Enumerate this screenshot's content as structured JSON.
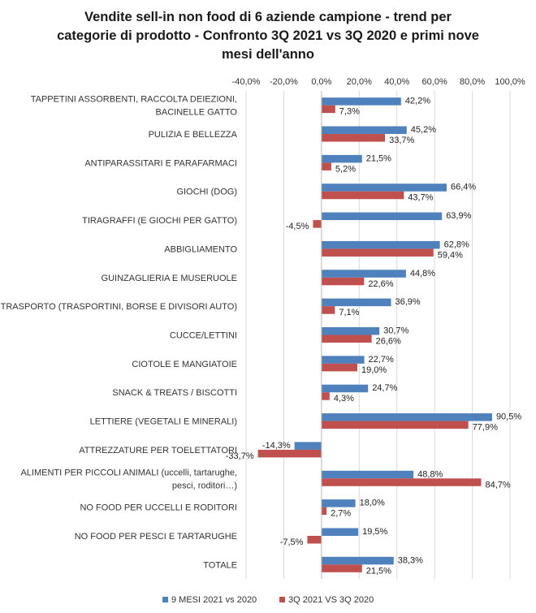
{
  "colors": {
    "series1": "#4f81bd",
    "series2": "#c0504d",
    "grid": "#d9d9d9",
    "text": "#333333"
  },
  "chart_data": {
    "type": "bar",
    "orientation": "horizontal",
    "title_lines": [
      "Vendite sell-in non food di 6 aziende campione - trend per",
      "categorie di prodotto - Confronto 3Q 2021 vs 3Q 2020 e primi nove",
      "mesi dell'anno"
    ],
    "categories": [
      [
        "TAPPETINI ASSORBENTI, RACCOLTA DEIEZIONI,",
        "BACINELLE GATTO"
      ],
      [
        "PULIZIA E BELLEZZA"
      ],
      [
        "ANTIPARASSITARI E PARAFARMACI"
      ],
      [
        "GIOCHI (DOG)"
      ],
      [
        "TIRAGRAFFI (E GIOCHI PER GATTO)"
      ],
      [
        "ABBIGLIAMENTO"
      ],
      [
        "GUINZAGLIERIA E MUSERUOLE"
      ],
      [
        "TRASPORTO (TRASPORTINI,  BORSE E DIVISORI AUTO)"
      ],
      [
        "CUCCE/LETTINI"
      ],
      [
        "CIOTOLE E MANGIATOIE"
      ],
      [
        "SNACK & TREATS / BISCOTTI"
      ],
      [
        "LETTIERE (VEGETALI E MINERALI)"
      ],
      [
        "ATTREZZATURE PER TOELETTATORI"
      ],
      [
        "ALIMENTI PER PICCOLI ANIMALI (uccelli, tartarughe,",
        "pesci, roditori…)"
      ],
      [
        "NO FOOD PER UCCELLI E RODITORI"
      ],
      [
        "NO FOOD PER PESCI E TARTARUGHE"
      ],
      [
        "TOTALE"
      ]
    ],
    "series": [
      {
        "name": "9 MESI 2021 vs 2020",
        "values": [
          42.2,
          45.2,
          21.5,
          66.4,
          63.9,
          62.8,
          44.8,
          36.9,
          30.7,
          22.7,
          24.7,
          90.5,
          -14.3,
          48.8,
          18.0,
          19.5,
          38.3
        ],
        "labels": [
          "42,2%",
          "45,2%",
          "21,5%",
          "66,4%",
          "63,9%",
          "62,8%",
          "44,8%",
          "36,9%",
          "30,7%",
          "22,7%",
          "24,7%",
          "90,5%",
          "-14,3%",
          "48,8%",
          "18,0%",
          "19,5%",
          "38,3%"
        ]
      },
      {
        "name": "3Q 2021 VS 3Q 2020",
        "values": [
          7.3,
          33.7,
          5.2,
          43.7,
          -4.5,
          59.4,
          22.6,
          7.1,
          26.6,
          19.0,
          4.3,
          77.9,
          -33.7,
          84.7,
          2.7,
          -7.5,
          21.5
        ],
        "labels": [
          "7,3%",
          "33,7%",
          "5,2%",
          "43,7%",
          "-4,5%",
          "59,4%",
          "22,6%",
          "7,1%",
          "26,6%",
          "19,0%",
          "4,3%",
          "77,9%",
          "-33,7%",
          "84,7%",
          "2,7%",
          "-7,5%",
          "21,5%"
        ]
      }
    ],
    "xlim": [
      -40,
      100
    ],
    "xticks": [
      -40,
      -20,
      0,
      20,
      40,
      60,
      80,
      100
    ],
    "xtick_labels": [
      "-40,0%",
      "-20,0%",
      "0,0%",
      "20,0%",
      "40,0%",
      "60,0%",
      "80,0%",
      "100,0%"
    ],
    "grid": true,
    "legend_position": "bottom"
  }
}
